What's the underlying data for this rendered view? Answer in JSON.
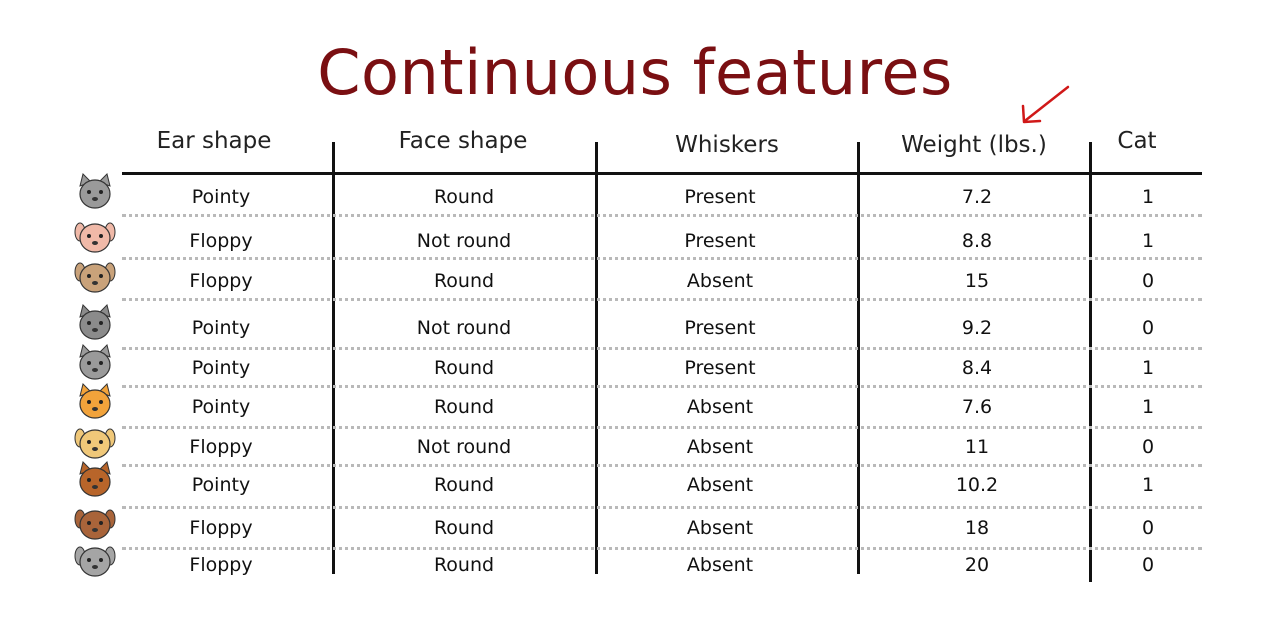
{
  "title": "Continuous features",
  "headers": {
    "ear": "Ear shape",
    "face": "Face shape",
    "whiskers": "Whiskers",
    "weight": "Weight (lbs.)",
    "cat": "Cat"
  },
  "animal_icons": [
    "gray-cat",
    "pink-pig",
    "pug-dog",
    "gray-wolf",
    "gray-cat",
    "orange-cat",
    "yellow-dog",
    "brown-cat",
    "brown-dog",
    "gray-dog"
  ],
  "rows": [
    {
      "ear": "Pointy",
      "face": "Round",
      "whiskers": "Present",
      "weight": "7.2",
      "cat": "1"
    },
    {
      "ear": "Floppy",
      "face": "Not round",
      "whiskers": "Present",
      "weight": "8.8",
      "cat": "1"
    },
    {
      "ear": "Floppy",
      "face": "Round",
      "whiskers": "Absent",
      "weight": "15",
      "cat": "0"
    },
    {
      "ear": "Pointy",
      "face": "Not round",
      "whiskers": "Present",
      "weight": "9.2",
      "cat": "0"
    },
    {
      "ear": "Pointy",
      "face": "Round",
      "whiskers": "Present",
      "weight": "8.4",
      "cat": "1"
    },
    {
      "ear": "Pointy",
      "face": "Round",
      "whiskers": "Absent",
      "weight": "7.6",
      "cat": "1"
    },
    {
      "ear": "Floppy",
      "face": "Not round",
      "whiskers": "Absent",
      "weight": "11",
      "cat": "0"
    },
    {
      "ear": "Pointy",
      "face": "Round",
      "whiskers": "Absent",
      "weight": "10.2",
      "cat": "1"
    },
    {
      "ear": "Floppy",
      "face": "Round",
      "whiskers": "Absent",
      "weight": "18",
      "cat": "0"
    },
    {
      "ear": "Floppy",
      "face": "Round",
      "whiskers": "Absent",
      "weight": "20",
      "cat": "0"
    }
  ],
  "colors": {
    "title": "#7a0f12",
    "arrow": "#d01818"
  }
}
